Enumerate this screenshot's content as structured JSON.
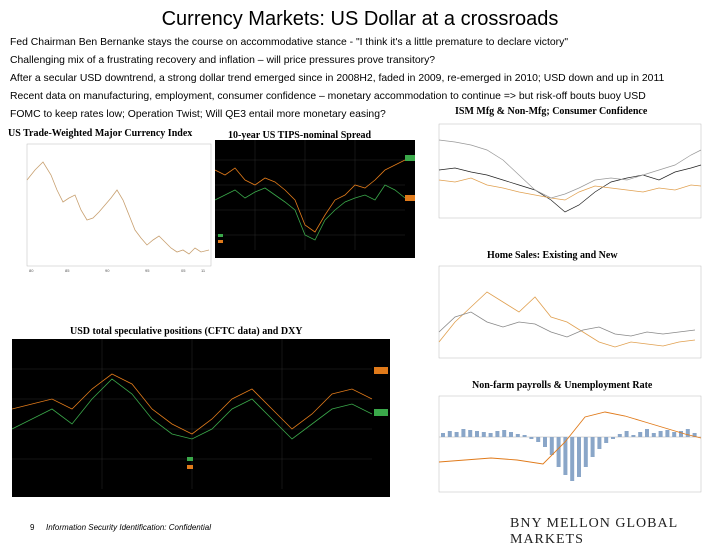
{
  "slide": {
    "title": "Currency Markets: US Dollar at a crossroads",
    "bullets": [
      "Fed Chairman Ben Bernanke stays the course on accommodative stance - \"I think it's a little premature to declare victory\"",
      "Challenging mix of a frustrating recovery and inflation – will price pressures prove transitory?",
      "After a secular USD downtrend, a strong dollar trend emerged since in 2008H2, faded in 2009, re-emerged in 2010; USD down and up in 2011",
      "Recent data on manufacturing, employment, consumer confidence – monetary accommodation to continue => but risk-off bouts buoy USD",
      "FOMC to keep rates low; Operation Twist; Will QE3 entail more monetary easing?"
    ]
  },
  "charts": {
    "currency_index": {
      "title": "US Trade-Weighted Major Currency Index",
      "line_color": "#c8a070"
    },
    "tips_spread": {
      "title": "10-year US TIPS-nominal Spread",
      "series_colors": [
        "#3aa84a",
        "#e07a1a"
      ]
    },
    "ism": {
      "title": "ISM Mfg & Non-Mfg; Consumer Confidence",
      "series_colors": [
        "#222222",
        "#e0a050",
        "#999999"
      ]
    },
    "home_sales": {
      "title": "Home Sales: Existing and New",
      "series_colors": [
        "#e0a050",
        "#888888"
      ]
    },
    "cftc": {
      "title": "USD total speculative positions (CFTC data) and DXY",
      "series_colors": [
        "#3aa84a",
        "#e07a1a"
      ]
    },
    "payrolls": {
      "title": "Non-farm payrolls & Unemployment Rate",
      "series_colors": [
        "#8aa6c8",
        "#e07a1a"
      ]
    }
  },
  "footer": {
    "page_number": "9",
    "classification": "Information Security Identification: Confidential",
    "brand": "BNY MELLON GLOBAL MARKETS"
  }
}
